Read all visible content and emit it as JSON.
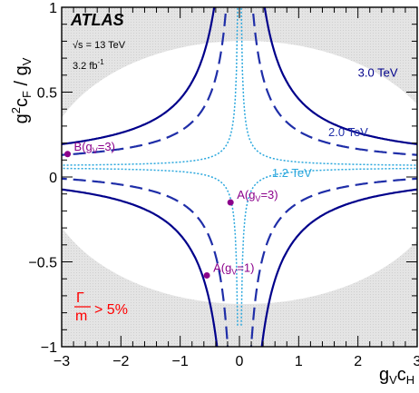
{
  "chart_data": {
    "type": "line",
    "xlabel": "g_V c_H",
    "ylabel": "g^2 c_F / g_V",
    "xlim": [
      -3,
      3
    ],
    "ylim": [
      -1,
      1
    ],
    "x_ticks": [
      "−3",
      "−2",
      "−1",
      "0",
      "1",
      "2",
      "3"
    ],
    "y_ticks": [
      "−1",
      "−0.5",
      "0",
      "0.5",
      "1"
    ],
    "experiment": "ATLAS",
    "energy": "√s = 13 TeV",
    "lumi": "3.2 fb",
    "lumi_exp": "-1",
    "width_region_label": "> 5%",
    "width_region_fraction": {
      "numerator": "Γ",
      "denominator": "m"
    },
    "series": [
      {
        "name": "3.0 TeV",
        "color": "#00008b",
        "style": "solid",
        "k": 0.4
      },
      {
        "name": "2.0 TeV",
        "color": "#1f2ea8",
        "style": "dashed",
        "k": 0.21
      },
      {
        "name": "1.2 TeV",
        "color": "#2aa7dd",
        "style": "dotted",
        "k": 0.028
      }
    ],
    "points": [
      {
        "label": "B(g_V=3)",
        "x": -2.9,
        "y": 0.135,
        "color": "#8b008b"
      },
      {
        "label": "A(g_V=3)",
        "x": -0.15,
        "y": -0.15,
        "color": "#8b008b"
      },
      {
        "label": "A(g_V=1)",
        "x": -0.55,
        "y": -0.58,
        "color": "#8b008b"
      }
    ]
  }
}
